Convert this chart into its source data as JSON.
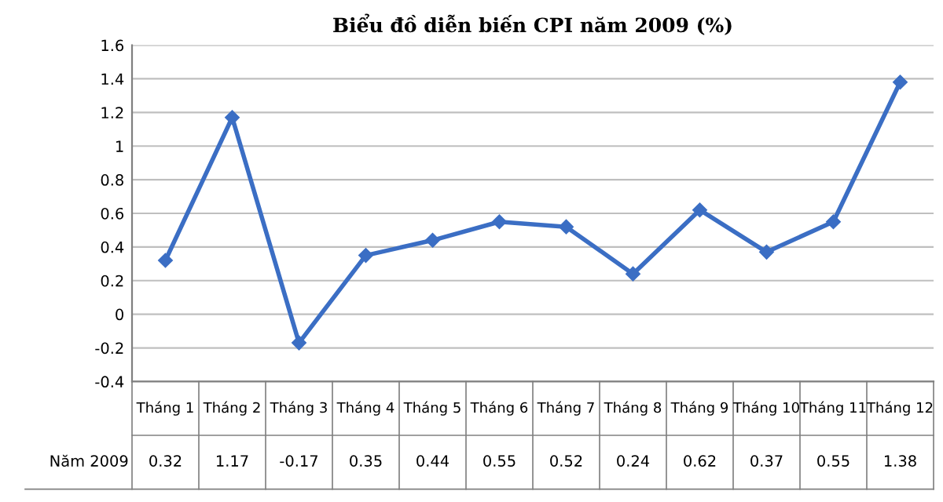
{
  "chart_data": {
    "type": "line",
    "title": "Biểu đồ diễn biến CPI năm 2009 (%)",
    "categories": [
      "Tháng 1",
      "Tháng 2",
      "Tháng 3",
      "Tháng 4",
      "Tháng 5",
      "Tháng 6",
      "Tháng 7",
      "Tháng 8",
      "Tháng 9",
      "Tháng 10",
      "Tháng 11",
      "Tháng 12"
    ],
    "series": [
      {
        "name": "Năm 2009",
        "color": "#3b6ec4",
        "values": [
          0.32,
          1.17,
          -0.17,
          0.35,
          0.44,
          0.55,
          0.52,
          0.24,
          0.62,
          0.37,
          0.55,
          1.38
        ]
      }
    ],
    "ylim": [
      -0.4,
      1.6
    ],
    "yticks": [
      -0.4,
      -0.2,
      0,
      0.2,
      0.4,
      0.6,
      0.8,
      1,
      1.2,
      1.4,
      1.6
    ],
    "grid": "y",
    "marker": "diamond",
    "line_style": "solid",
    "data_labels": true,
    "legend": false
  }
}
